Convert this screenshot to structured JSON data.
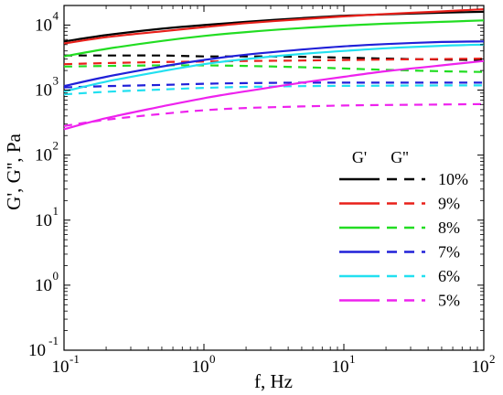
{
  "chart_data": {
    "type": "line",
    "title": "",
    "xlabel": "f, Hz",
    "ylabel": "G', G'', Pa",
    "x_scale": "log",
    "y_scale": "log",
    "xlim": [
      0.1,
      100
    ],
    "ylim": [
      0.1,
      20000
    ],
    "x_ticks": [
      {
        "base": "10",
        "exp": "-1",
        "value": 0.1
      },
      {
        "base": "10",
        "exp": "0",
        "value": 1
      },
      {
        "base": "10",
        "exp": "1",
        "value": 10
      },
      {
        "base": "10",
        "exp": "2",
        "value": 100
      }
    ],
    "y_ticks": [
      {
        "base": "10",
        "exp": "-1",
        "value": 0.1
      },
      {
        "base": "10",
        "exp": "0",
        "value": 1
      },
      {
        "base": "10",
        "exp": "1",
        "value": 10
      },
      {
        "base": "10",
        "exp": "2",
        "value": 100
      },
      {
        "base": "10",
        "exp": "3",
        "value": 1000
      },
      {
        "base": "10",
        "exp": "4",
        "value": 10000
      }
    ],
    "grid": false,
    "legend": {
      "placement": "right",
      "header_solid": "G'",
      "header_dashed": "G''",
      "entries": [
        "10%",
        "9%",
        "8%",
        "7%",
        "6%",
        "5%"
      ]
    },
    "x": [
      0.1,
      0.2,
      0.5,
      1,
      2,
      5,
      10,
      20,
      50,
      100
    ],
    "series": [
      {
        "name": "10%",
        "modulus": "G'",
        "style": "solid",
        "color": "#000000",
        "values": [
          5600,
          7000,
          8800,
          10000,
          11200,
          12800,
          13900,
          14600,
          15500,
          16000
        ]
      },
      {
        "name": "10%",
        "modulus": "G''",
        "style": "dashed",
        "color": "#000000",
        "values": [
          3400,
          3400,
          3400,
          3300,
          3300,
          3250,
          3150,
          3050,
          2950,
          2900
        ]
      },
      {
        "name": "9%",
        "modulus": "G'",
        "style": "solid",
        "color": "#e8201a",
        "values": [
          5200,
          6500,
          8000,
          9300,
          10700,
          12300,
          13600,
          14800,
          16200,
          17500
        ]
      },
      {
        "name": "9%",
        "modulus": "G''",
        "style": "dashed",
        "color": "#e8201a",
        "values": [
          2500,
          2600,
          2700,
          2750,
          2800,
          2850,
          2900,
          2950,
          3000,
          3050
        ]
      },
      {
        "name": "8%",
        "modulus": "G'",
        "style": "solid",
        "color": "#22dd22",
        "values": [
          3300,
          4300,
          5700,
          6800,
          7800,
          9000,
          9800,
          10500,
          11200,
          11800
        ]
      },
      {
        "name": "8%",
        "modulus": "G''",
        "style": "dashed",
        "color": "#22dd22",
        "values": [
          2300,
          2350,
          2400,
          2400,
          2350,
          2250,
          2150,
          2050,
          1950,
          1900
        ]
      },
      {
        "name": "7%",
        "modulus": "G'",
        "style": "solid",
        "color": "#2020d8",
        "values": [
          1150,
          1600,
          2300,
          2900,
          3500,
          4200,
          4700,
          5100,
          5500,
          5600
        ]
      },
      {
        "name": "7%",
        "modulus": "G''",
        "style": "dashed",
        "color": "#2020d8",
        "values": [
          1100,
          1150,
          1200,
          1250,
          1280,
          1300,
          1300,
          1300,
          1300,
          1300
        ]
      },
      {
        "name": "6%",
        "modulus": "G'",
        "style": "solid",
        "color": "#22e0f0",
        "values": [
          950,
          1350,
          1950,
          2500,
          3000,
          3600,
          4000,
          4400,
          4800,
          5000
        ]
      },
      {
        "name": "6%",
        "modulus": "G''",
        "style": "dashed",
        "color": "#22e0f0",
        "values": [
          860,
          940,
          1020,
          1080,
          1120,
          1150,
          1160,
          1170,
          1180,
          1180
        ]
      },
      {
        "name": "5%",
        "modulus": "G'",
        "style": "solid",
        "color": "#ee22ee",
        "values": [
          250,
          370,
          560,
          750,
          960,
          1300,
          1600,
          1950,
          2400,
          2800
        ]
      },
      {
        "name": "5%",
        "modulus": "G''",
        "style": "dashed",
        "color": "#ee22ee",
        "values": [
          280,
          350,
          430,
          490,
          530,
          560,
          580,
          590,
          600,
          610
        ]
      }
    ]
  }
}
